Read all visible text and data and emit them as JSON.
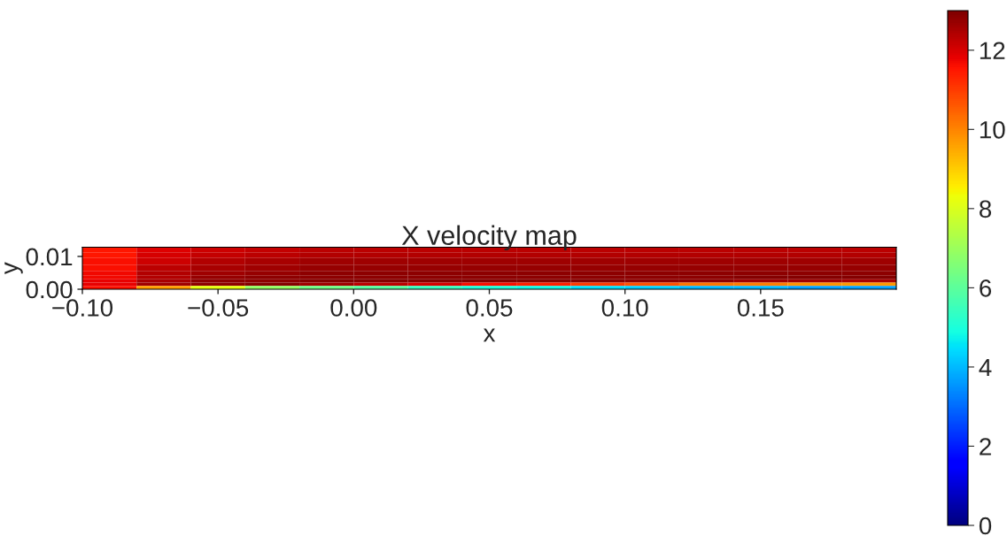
{
  "chart_data": {
    "type": "heatmap",
    "title": "X velocity map",
    "xlabel": "x",
    "ylabel": "y",
    "x": [
      -0.09,
      -0.07,
      -0.05,
      -0.03,
      -0.01,
      0.01,
      0.03,
      0.05,
      0.07,
      0.09,
      0.11,
      0.13,
      0.15,
      0.17,
      0.19
    ],
    "y": [
      0.012,
      0.0105,
      0.0085,
      0.0065,
      0.0047,
      0.0035,
      0.0025,
      0.0015,
      0.0005
    ],
    "cells": [
      [
        11.5,
        11.9,
        12.1,
        12.2,
        12.3,
        12.3,
        12.3,
        12.3,
        12.3,
        12.3,
        12.3,
        12.3,
        12.3,
        12.3,
        12.3
      ],
      [
        11.5,
        12.0,
        12.2,
        12.3,
        12.4,
        12.4,
        12.4,
        12.4,
        12.4,
        12.4,
        12.4,
        12.4,
        12.4,
        12.4,
        12.4
      ],
      [
        11.6,
        12.1,
        12.4,
        12.5,
        12.6,
        12.6,
        12.6,
        12.6,
        12.6,
        12.6,
        12.6,
        12.6,
        12.6,
        12.6,
        12.6
      ],
      [
        11.6,
        12.3,
        12.5,
        12.6,
        12.7,
        12.7,
        12.7,
        12.7,
        12.7,
        12.7,
        12.7,
        12.7,
        12.7,
        12.7,
        12.7
      ],
      [
        11.7,
        12.4,
        12.6,
        12.7,
        12.8,
        12.8,
        12.8,
        12.8,
        12.8,
        12.8,
        12.8,
        12.8,
        12.8,
        12.8,
        12.8
      ],
      [
        11.7,
        12.4,
        12.7,
        12.8,
        12.8,
        12.8,
        12.8,
        12.8,
        12.8,
        12.8,
        12.8,
        12.8,
        12.9,
        12.9,
        12.9
      ],
      [
        11.8,
        12.5,
        12.8,
        12.8,
        12.9,
        12.9,
        12.9,
        12.9,
        12.9,
        12.9,
        12.8,
        12.8,
        12.6,
        12.6,
        12.5
      ],
      [
        11.8,
        12.6,
        12.8,
        12.9,
        12.6,
        12.3,
        12.0,
        11.6,
        11.4,
        11.0,
        10.7,
        10.2,
        10.1,
        9.8,
        9.7
      ],
      [
        11.6,
        9.6,
        8.2,
        6.9,
        6.3,
        5.9,
        5.4,
        5.0,
        4.8,
        4.5,
        4.3,
        4.0,
        4.0,
        3.7,
        3.7
      ]
    ],
    "clim": [
      0,
      13
    ],
    "cticks": [
      0,
      2,
      4,
      6,
      8,
      10,
      12
    ],
    "xlim": [
      -0.1,
      0.2
    ],
    "ylim": [
      0,
      0.0128
    ],
    "xticks": [
      {
        "value": -0.1,
        "label": "−0.10"
      },
      {
        "value": -0.05,
        "label": "−0.05"
      },
      {
        "value": 0,
        "label": "0.00"
      },
      {
        "value": 0.05,
        "label": "0.05"
      },
      {
        "value": 0.1,
        "label": "0.10"
      },
      {
        "value": 0.15,
        "label": "0.15"
      }
    ],
    "yticks": [
      {
        "value": 0,
        "label": "0.00"
      },
      {
        "value": 0.01,
        "label": "0.01"
      }
    ]
  }
}
